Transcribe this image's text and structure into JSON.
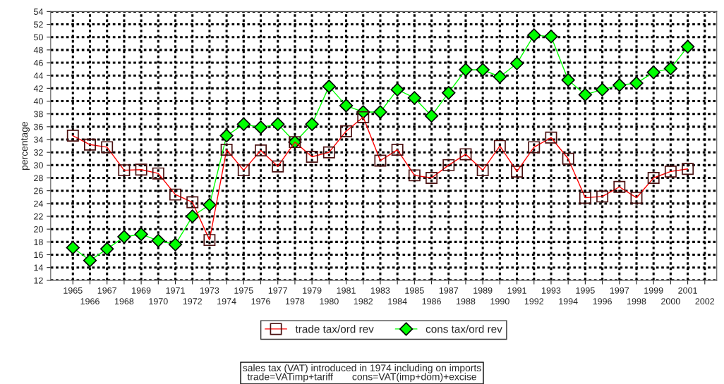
{
  "chart_data": {
    "type": "line",
    "ylabel": "percentage",
    "categories": [
      "1965",
      "1966",
      "1967",
      "1968",
      "1969",
      "1970",
      "1971",
      "1972",
      "1973",
      "1974",
      "1975",
      "1976",
      "1977",
      "1978",
      "1979",
      "1980",
      "1981",
      "1982",
      "1983",
      "1984",
      "1985",
      "1986",
      "1987",
      "1988",
      "1989",
      "1990",
      "1991",
      "1992",
      "1993",
      "1994",
      "1995",
      "1996",
      "1997",
      "1998",
      "1999",
      "2000",
      "2001",
      "2002"
    ],
    "series": [
      {
        "name": "trade tax/ord rev",
        "color": "#ff0000",
        "marker": "square",
        "values": [
          34.6,
          33.2,
          32.8,
          29.2,
          29.3,
          28.7,
          25.4,
          24.2,
          18.3,
          32.4,
          29.2,
          32.3,
          29.8,
          33.6,
          31.3,
          32.0,
          35.3,
          37.5,
          30.7,
          32.4,
          28.4,
          28.0,
          30.0,
          31.7,
          29.2,
          33.0,
          29.0,
          32.8,
          34.3,
          31.0,
          24.9,
          25.1,
          26.6,
          24.9,
          28.0,
          29.0,
          29.4,
          null
        ]
      },
      {
        "name": "cons tax/ord rev",
        "color": "#00ff00",
        "marker": "diamond",
        "values": [
          17.1,
          15.1,
          16.9,
          18.8,
          19.2,
          18.2,
          17.6,
          22.0,
          23.8,
          34.6,
          36.4,
          35.9,
          36.4,
          33.6,
          36.4,
          42.3,
          39.3,
          38.3,
          38.3,
          41.8,
          40.5,
          37.7,
          41.3,
          44.9,
          44.9,
          43.8,
          45.9,
          50.3,
          50.1,
          43.3,
          41.0,
          41.8,
          42.5,
          42.8,
          44.5,
          45.1,
          48.5,
          null
        ]
      }
    ],
    "ylim": [
      12,
      54
    ],
    "yticks": [
      12,
      14,
      16,
      18,
      20,
      22,
      24,
      26,
      28,
      30,
      32,
      34,
      36,
      38,
      40,
      42,
      44,
      46,
      48,
      50,
      52,
      54
    ],
    "grid": true,
    "legend": "bottom",
    "line_style": "solid",
    "annotations": [
      "sales tax (VAT) introduced in 1974 including on imports\ntrade=VATimp+tariff       cons=VAT(imp+dom)+excise"
    ]
  }
}
